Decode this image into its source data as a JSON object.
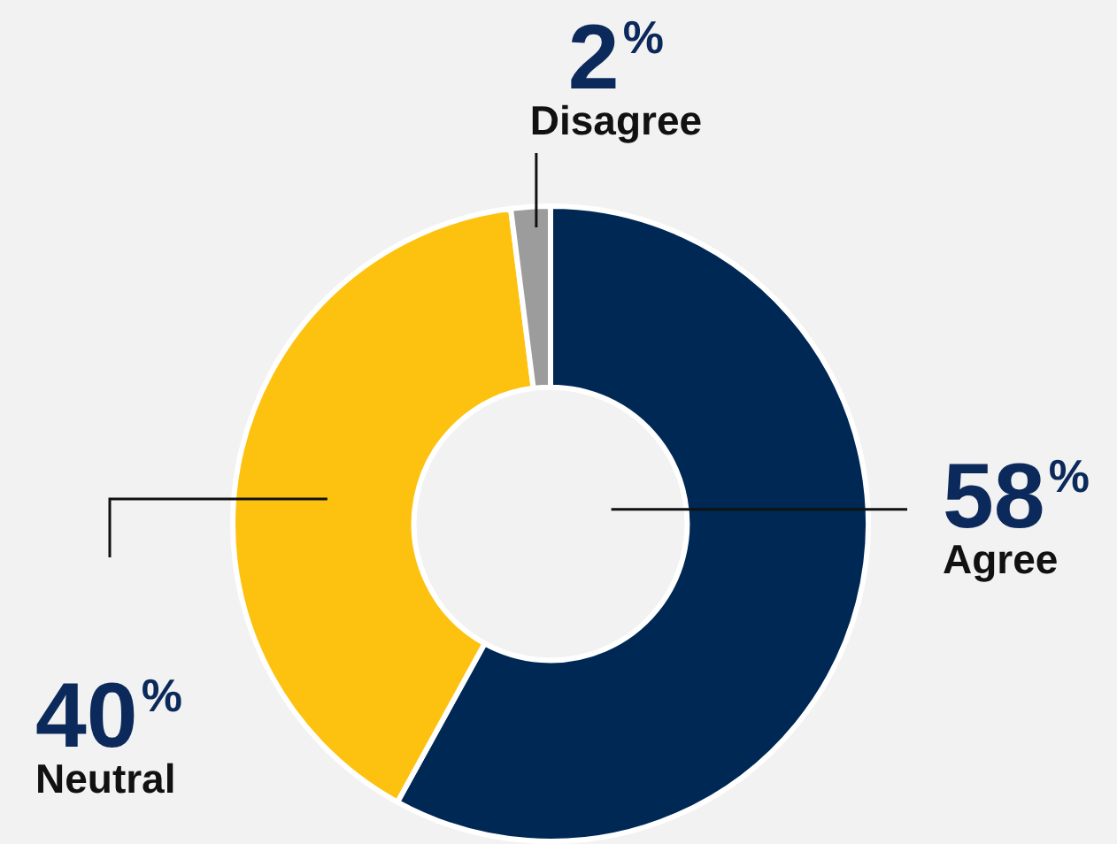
{
  "chart_data": {
    "type": "donut",
    "categories": [
      "Agree",
      "Neutral",
      "Disagree"
    ],
    "values": [
      58,
      40,
      2
    ],
    "colors": [
      "#002855",
      "#fdc20f",
      "#9c9c9c"
    ],
    "value_labels": [
      "58%",
      "40%",
      "2%"
    ],
    "legend": false
  }
}
